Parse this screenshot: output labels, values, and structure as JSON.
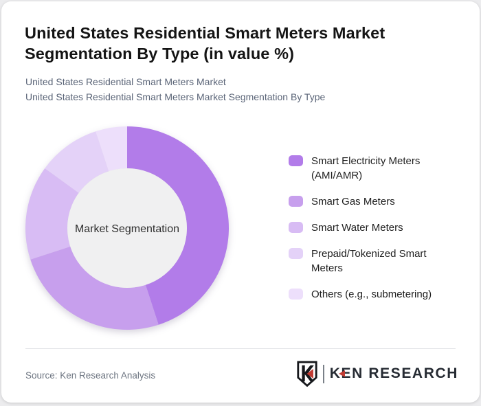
{
  "page": {
    "title": "United States Residential Smart Meters Market Segmentation By Type (in value %)",
    "subtitle_line1": "United States Residential Smart Meters Market",
    "subtitle_line2": "United States Residential Smart Meters Market Segmentation By Type"
  },
  "chart_data": {
    "type": "pie",
    "variant": "donut",
    "title": "United States Residential Smart Meters Market Segmentation By Type (in value %)",
    "center_label": "Market Segmentation",
    "unit": "%",
    "start_angle_deg": 0,
    "direction": "clockwise",
    "legend_position": "right",
    "categories": [
      "Smart Electricity Meters (AMI/AMR)",
      "Smart Gas Meters",
      "Smart Water Meters",
      "Prepaid/Tokenized Smart Meters",
      "Others (e.g., submetering)"
    ],
    "values": [
      45,
      25,
      15,
      10,
      5
    ],
    "colors": [
      "#b27ce9",
      "#c79fed",
      "#d8bcf4",
      "#e4d2f8",
      "#eddffb"
    ],
    "inner_circle_color": "#f0f0f1"
  },
  "footer": {
    "source": "Source: Ken Research Analysis",
    "logo_text": "KEN RESEARCH",
    "logo_red": "#c23b33",
    "logo_dark": "#23282f"
  }
}
